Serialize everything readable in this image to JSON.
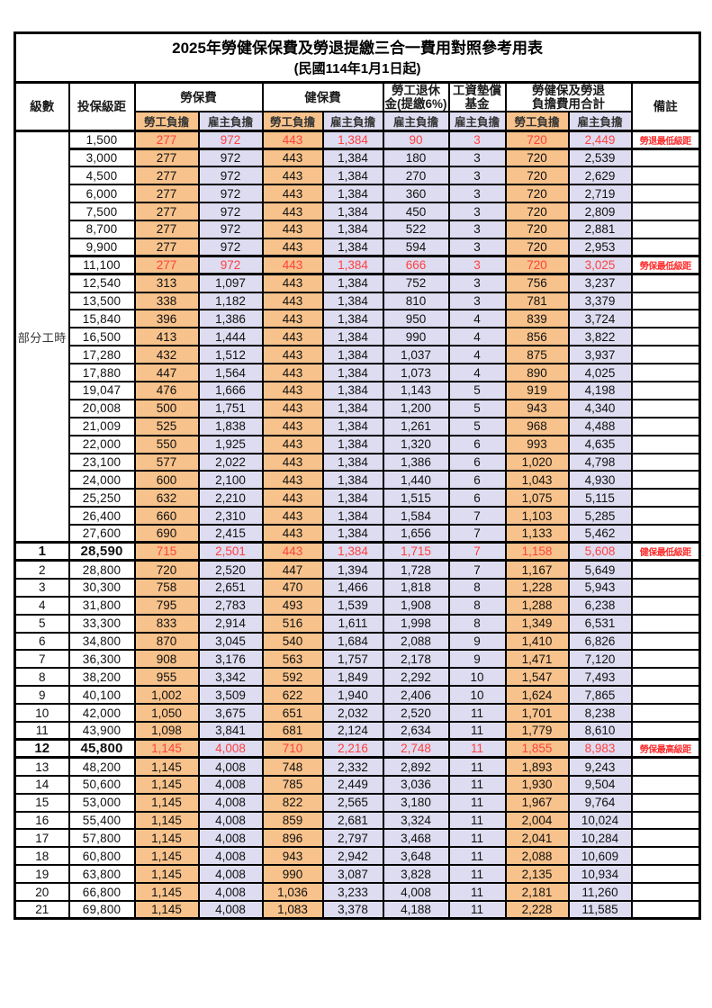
{
  "title": "2025年勞健保保費及勞退提繳三合一費用對照參考用表",
  "subtitle": "(民國114年1月1日起)",
  "colors": {
    "employee_bg": "#F7C28B",
    "employer_bg": "#DEDCF0",
    "highlight_text": "#FF4040",
    "remark_text": "#FF2E2E",
    "border": "#000000"
  },
  "header": {
    "level": "級數",
    "bracket": "投保級距",
    "labor_ins": "勞保費",
    "health_ins": "健保費",
    "pension_line1": "勞工退休",
    "pension_line2": "金(提繳6%)",
    "wage_fund_line1": "工資墊償",
    "wage_fund_line2": "基金",
    "total_line1": "勞健保及勞退",
    "total_line2": "負擔費用合計",
    "remark": "備註",
    "employee": "勞工負擔",
    "employer": "雇主負擔"
  },
  "left_group_label": "部分工時",
  "part_time_row_count": 23,
  "rows": [
    {
      "lv": "",
      "br": "1,500",
      "v": [
        "277",
        "972",
        "443",
        "1,384",
        "90",
        "3",
        "720",
        "2,449"
      ],
      "rm": "勞退最低級距",
      "hl": true
    },
    {
      "lv": "",
      "br": "3,000",
      "v": [
        "277",
        "972",
        "443",
        "1,384",
        "180",
        "3",
        "720",
        "2,539"
      ]
    },
    {
      "lv": "",
      "br": "4,500",
      "v": [
        "277",
        "972",
        "443",
        "1,384",
        "270",
        "3",
        "720",
        "2,629"
      ]
    },
    {
      "lv": "",
      "br": "6,000",
      "v": [
        "277",
        "972",
        "443",
        "1,384",
        "360",
        "3",
        "720",
        "2,719"
      ]
    },
    {
      "lv": "",
      "br": "7,500",
      "v": [
        "277",
        "972",
        "443",
        "1,384",
        "450",
        "3",
        "720",
        "2,809"
      ]
    },
    {
      "lv": "",
      "br": "8,700",
      "v": [
        "277",
        "972",
        "443",
        "1,384",
        "522",
        "3",
        "720",
        "2,881"
      ]
    },
    {
      "lv": "",
      "br": "9,900",
      "v": [
        "277",
        "972",
        "443",
        "1,384",
        "594",
        "3",
        "720",
        "2,953"
      ]
    },
    {
      "lv": "",
      "br": "11,100",
      "v": [
        "277",
        "972",
        "443",
        "1,384",
        "666",
        "3",
        "720",
        "3,025"
      ],
      "rm": "勞保最低級距",
      "hl": true
    },
    {
      "lv": "",
      "br": "12,540",
      "v": [
        "313",
        "1,097",
        "443",
        "1,384",
        "752",
        "3",
        "756",
        "3,237"
      ]
    },
    {
      "lv": "",
      "br": "13,500",
      "v": [
        "338",
        "1,182",
        "443",
        "1,384",
        "810",
        "3",
        "781",
        "3,379"
      ]
    },
    {
      "lv": "",
      "br": "15,840",
      "v": [
        "396",
        "1,386",
        "443",
        "1,384",
        "950",
        "4",
        "839",
        "3,724"
      ]
    },
    {
      "lv": "",
      "br": "16,500",
      "v": [
        "413",
        "1,444",
        "443",
        "1,384",
        "990",
        "4",
        "856",
        "3,822"
      ]
    },
    {
      "lv": "",
      "br": "17,280",
      "v": [
        "432",
        "1,512",
        "443",
        "1,384",
        "1,037",
        "4",
        "875",
        "3,937"
      ]
    },
    {
      "lv": "",
      "br": "17,880",
      "v": [
        "447",
        "1,564",
        "443",
        "1,384",
        "1,073",
        "4",
        "890",
        "4,025"
      ]
    },
    {
      "lv": "",
      "br": "19,047",
      "v": [
        "476",
        "1,666",
        "443",
        "1,384",
        "1,143",
        "5",
        "919",
        "4,198"
      ]
    },
    {
      "lv": "",
      "br": "20,008",
      "v": [
        "500",
        "1,751",
        "443",
        "1,384",
        "1,200",
        "5",
        "943",
        "4,340"
      ]
    },
    {
      "lv": "",
      "br": "21,009",
      "v": [
        "525",
        "1,838",
        "443",
        "1,384",
        "1,261",
        "5",
        "968",
        "4,488"
      ]
    },
    {
      "lv": "",
      "br": "22,000",
      "v": [
        "550",
        "1,925",
        "443",
        "1,384",
        "1,320",
        "6",
        "993",
        "4,635"
      ]
    },
    {
      "lv": "",
      "br": "23,100",
      "v": [
        "577",
        "2,022",
        "443",
        "1,384",
        "1,386",
        "6",
        "1,020",
        "4,798"
      ]
    },
    {
      "lv": "",
      "br": "24,000",
      "v": [
        "600",
        "2,100",
        "443",
        "1,384",
        "1,440",
        "6",
        "1,043",
        "4,930"
      ]
    },
    {
      "lv": "",
      "br": "25,250",
      "v": [
        "632",
        "2,210",
        "443",
        "1,384",
        "1,515",
        "6",
        "1,075",
        "5,115"
      ]
    },
    {
      "lv": "",
      "br": "26,400",
      "v": [
        "660",
        "2,310",
        "443",
        "1,384",
        "1,584",
        "7",
        "1,103",
        "5,285"
      ]
    },
    {
      "lv": "",
      "br": "27,600",
      "v": [
        "690",
        "2,415",
        "443",
        "1,384",
        "1,656",
        "7",
        "1,133",
        "5,462"
      ]
    },
    {
      "lv": "1",
      "br": "28,590",
      "v": [
        "715",
        "2,501",
        "443",
        "1,384",
        "1,715",
        "7",
        "1,158",
        "5,608"
      ],
      "rm": "健保最低級距",
      "hl": true,
      "bd": true
    },
    {
      "lv": "2",
      "br": "28,800",
      "v": [
        "720",
        "2,520",
        "447",
        "1,394",
        "1,728",
        "7",
        "1,167",
        "5,649"
      ]
    },
    {
      "lv": "3",
      "br": "30,300",
      "v": [
        "758",
        "2,651",
        "470",
        "1,466",
        "1,818",
        "8",
        "1,228",
        "5,943"
      ]
    },
    {
      "lv": "4",
      "br": "31,800",
      "v": [
        "795",
        "2,783",
        "493",
        "1,539",
        "1,908",
        "8",
        "1,288",
        "6,238"
      ]
    },
    {
      "lv": "5",
      "br": "33,300",
      "v": [
        "833",
        "2,914",
        "516",
        "1,611",
        "1,998",
        "8",
        "1,349",
        "6,531"
      ]
    },
    {
      "lv": "6",
      "br": "34,800",
      "v": [
        "870",
        "3,045",
        "540",
        "1,684",
        "2,088",
        "9",
        "1,410",
        "6,826"
      ]
    },
    {
      "lv": "7",
      "br": "36,300",
      "v": [
        "908",
        "3,176",
        "563",
        "1,757",
        "2,178",
        "9",
        "1,471",
        "7,120"
      ]
    },
    {
      "lv": "8",
      "br": "38,200",
      "v": [
        "955",
        "3,342",
        "592",
        "1,849",
        "2,292",
        "10",
        "1,547",
        "7,493"
      ]
    },
    {
      "lv": "9",
      "br": "40,100",
      "v": [
        "1,002",
        "3,509",
        "622",
        "1,940",
        "2,406",
        "10",
        "1,624",
        "7,865"
      ]
    },
    {
      "lv": "10",
      "br": "42,000",
      "v": [
        "1,050",
        "3,675",
        "651",
        "2,032",
        "2,520",
        "11",
        "1,701",
        "8,238"
      ]
    },
    {
      "lv": "11",
      "br": "43,900",
      "v": [
        "1,098",
        "3,841",
        "681",
        "2,124",
        "2,634",
        "11",
        "1,779",
        "8,610"
      ]
    },
    {
      "lv": "12",
      "br": "45,800",
      "v": [
        "1,145",
        "4,008",
        "710",
        "2,216",
        "2,748",
        "11",
        "1,855",
        "8,983"
      ],
      "rm": "勞保最高級距",
      "hl": true,
      "bd": true
    },
    {
      "lv": "13",
      "br": "48,200",
      "v": [
        "1,145",
        "4,008",
        "748",
        "2,332",
        "2,892",
        "11",
        "1,893",
        "9,243"
      ]
    },
    {
      "lv": "14",
      "br": "50,600",
      "v": [
        "1,145",
        "4,008",
        "785",
        "2,449",
        "3,036",
        "11",
        "1,930",
        "9,504"
      ]
    },
    {
      "lv": "15",
      "br": "53,000",
      "v": [
        "1,145",
        "4,008",
        "822",
        "2,565",
        "3,180",
        "11",
        "1,967",
        "9,764"
      ]
    },
    {
      "lv": "16",
      "br": "55,400",
      "v": [
        "1,145",
        "4,008",
        "859",
        "2,681",
        "3,324",
        "11",
        "2,004",
        "10,024"
      ]
    },
    {
      "lv": "17",
      "br": "57,800",
      "v": [
        "1,145",
        "4,008",
        "896",
        "2,797",
        "3,468",
        "11",
        "2,041",
        "10,284"
      ]
    },
    {
      "lv": "18",
      "br": "60,800",
      "v": [
        "1,145",
        "4,008",
        "943",
        "2,942",
        "3,648",
        "11",
        "2,088",
        "10,609"
      ]
    },
    {
      "lv": "19",
      "br": "63,800",
      "v": [
        "1,145",
        "4,008",
        "990",
        "3,087",
        "3,828",
        "11",
        "2,135",
        "10,934"
      ]
    },
    {
      "lv": "20",
      "br": "66,800",
      "v": [
        "1,145",
        "4,008",
        "1,036",
        "3,233",
        "4,008",
        "11",
        "2,181",
        "11,260"
      ]
    },
    {
      "lv": "21",
      "br": "69,800",
      "v": [
        "1,145",
        "4,008",
        "1,083",
        "3,378",
        "4,188",
        "11",
        "2,228",
        "11,585"
      ]
    }
  ]
}
